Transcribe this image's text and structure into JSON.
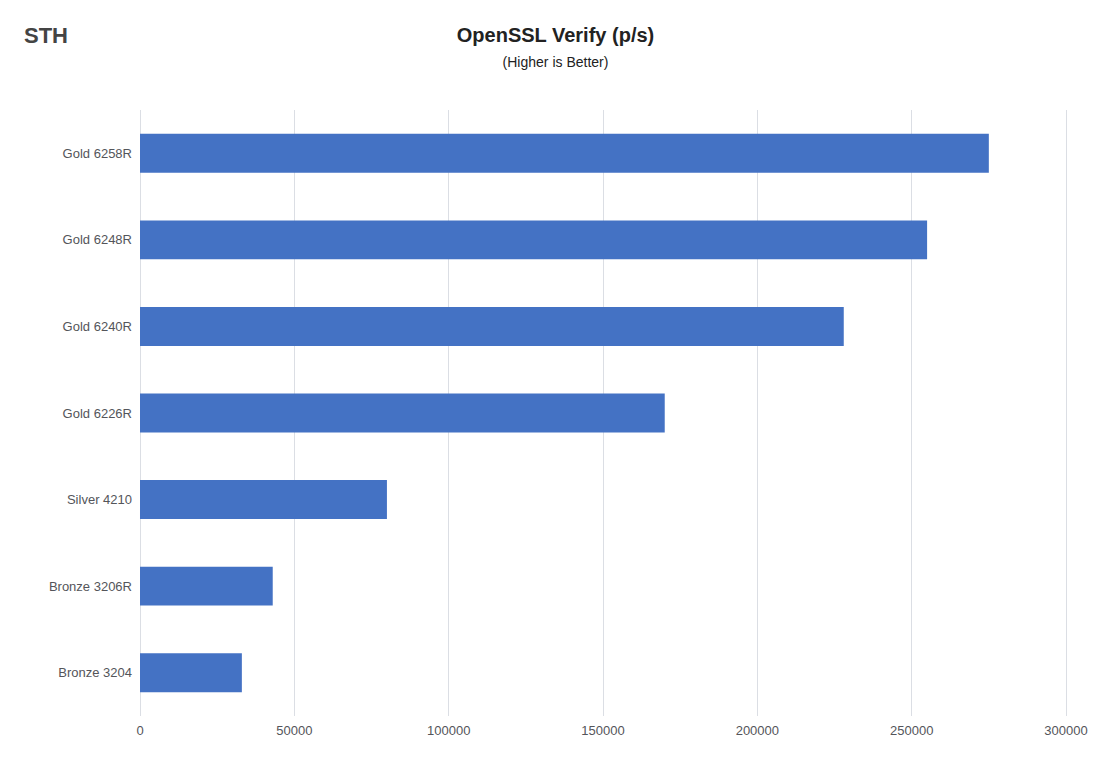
{
  "chart_data": {
    "type": "bar",
    "title": "OpenSSL Verify (p/s)",
    "subtitle": "(Higher is Better)",
    "categories": [
      "Bronze 3204",
      "Bronze 3206R",
      "Silver 4210",
      "Gold 6226R",
      "Gold 6240R",
      "Gold 6248R",
      "Gold 6258R"
    ],
    "values": [
      33000,
      43000,
      80000,
      170000,
      228000,
      255000,
      275000
    ],
    "color": "#4472C4",
    "orientation": "horizontal",
    "xlim": [
      0,
      300000
    ],
    "xticks": [
      0,
      50000,
      100000,
      150000,
      200000,
      250000,
      300000
    ],
    "grid": true,
    "annotations": [
      "STH"
    ]
  }
}
